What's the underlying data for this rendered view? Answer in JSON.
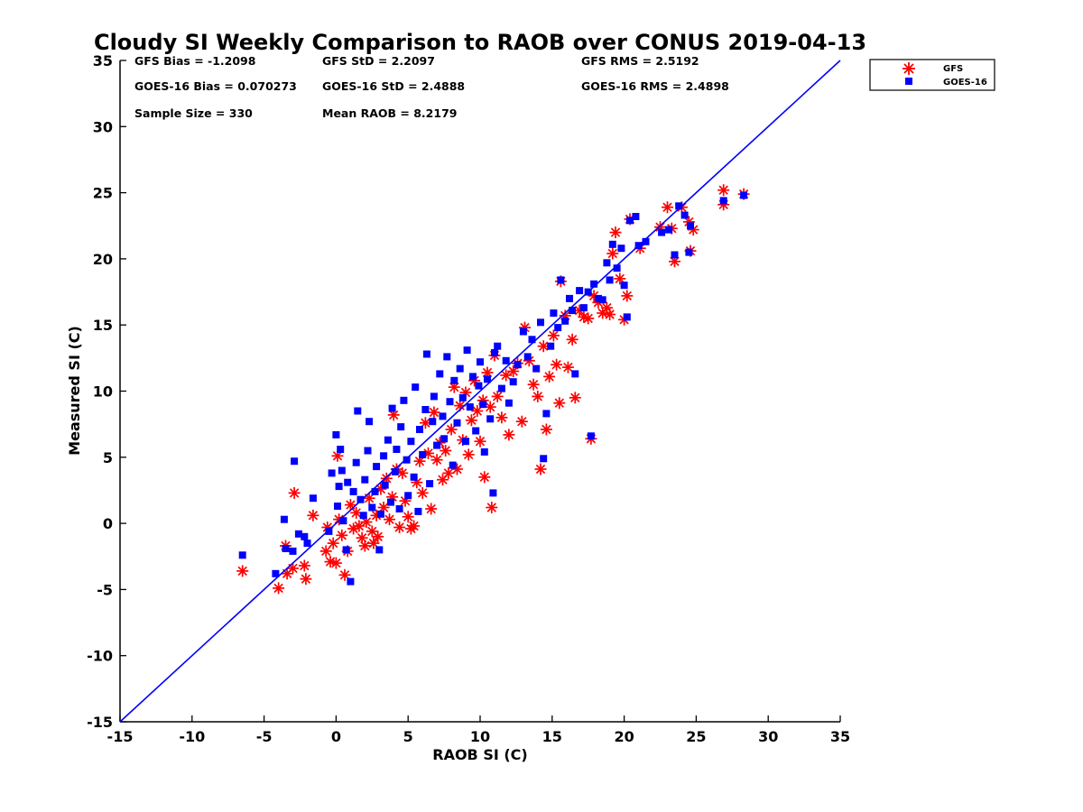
{
  "chart_data": {
    "type": "scatter",
    "title": "Cloudy SI Weekly Comparison to RAOB over CONUS 2019-04-13",
    "xlabel": "RAOB SI (C)",
    "ylabel": "Measured SI (C)",
    "xlim": [
      -15,
      35
    ],
    "ylim": [
      -15,
      35
    ],
    "xticks": [
      "-15",
      "-10",
      "-5",
      "0",
      "5",
      "10",
      "15",
      "20",
      "25",
      "30",
      "35"
    ],
    "yticks": [
      "-15",
      "-10",
      "-5",
      "0",
      "5",
      "10",
      "15",
      "20",
      "25",
      "30",
      "35"
    ],
    "grid": false,
    "legend_position": "outside-top-right",
    "reference_line": {
      "from": [
        -15,
        -15
      ],
      "to": [
        35,
        35
      ],
      "color": "#0000ff"
    },
    "stats": [
      {
        "label": "GFS Bias = -1.2098"
      },
      {
        "label": "GFS StD = 2.2097"
      },
      {
        "label": "GFS RMS = 2.5192"
      },
      {
        "label": "GOES-16 Bias = 0.070273"
      },
      {
        "label": "GOES-16 StD = 2.4888"
      },
      {
        "label": "GOES-16 RMS = 2.4898"
      },
      {
        "label": "Sample Size = 330"
      },
      {
        "label": "Mean RAOB = 8.2179"
      }
    ],
    "series": [
      {
        "name": "GFS",
        "marker": "asterisk",
        "color": "#ff0000",
        "points": [
          [
            -6.5,
            -3.6
          ],
          [
            -4,
            -4.9
          ],
          [
            -3.5,
            -1.7
          ],
          [
            -3.4,
            -3.8
          ],
          [
            -3,
            -3.4
          ],
          [
            -2.9,
            2.3
          ],
          [
            -2.2,
            -3.2
          ],
          [
            -2.1,
            -4.2
          ],
          [
            -1.6,
            0.6
          ],
          [
            -0.7,
            -2.1
          ],
          [
            -0.6,
            -0.3
          ],
          [
            -0.4,
            -2.9
          ],
          [
            -0.2,
            -1.5
          ],
          [
            0,
            -3
          ],
          [
            0.1,
            5.1
          ],
          [
            0.2,
            0.3
          ],
          [
            0.4,
            -0.9
          ],
          [
            0.6,
            -3.9
          ],
          [
            0.8,
            -2.1
          ],
          [
            1,
            1.4
          ],
          [
            1.2,
            -0.4
          ],
          [
            1.4,
            0.8
          ],
          [
            1.6,
            -0.2
          ],
          [
            1.8,
            -1.1
          ],
          [
            2,
            -1.7
          ],
          [
            2.1,
            0.1
          ],
          [
            2.3,
            1.9
          ],
          [
            2.5,
            -0.6
          ],
          [
            2.6,
            -1.5
          ],
          [
            2.8,
            0.6
          ],
          [
            2.9,
            -1.0
          ],
          [
            3.1,
            2.6
          ],
          [
            3.3,
            1.2
          ],
          [
            3.5,
            3.4
          ],
          [
            3.7,
            0.3
          ],
          [
            3.9,
            2.0
          ],
          [
            4,
            8.2
          ],
          [
            4.2,
            4.1
          ],
          [
            4.4,
            -0.3
          ],
          [
            4.6,
            3.8
          ],
          [
            4.8,
            1.7
          ],
          [
            5,
            0.5
          ],
          [
            5.2,
            -0.4
          ],
          [
            5.4,
            -0.2
          ],
          [
            5.6,
            3.1
          ],
          [
            5.8,
            4.7
          ],
          [
            6,
            2.3
          ],
          [
            6.2,
            7.6
          ],
          [
            6.4,
            5.3
          ],
          [
            6.6,
            1.1
          ],
          [
            6.8,
            8.4
          ],
          [
            7,
            4.8
          ],
          [
            7.2,
            6.1
          ],
          [
            7.4,
            3.3
          ],
          [
            7.6,
            5.5
          ],
          [
            7.8,
            3.8
          ],
          [
            8,
            7.1
          ],
          [
            8.2,
            10.3
          ],
          [
            8.4,
            4.1
          ],
          [
            8.6,
            8.9
          ],
          [
            8.8,
            6.3
          ],
          [
            9,
            9.9
          ],
          [
            9.2,
            5.2
          ],
          [
            9.4,
            7.8
          ],
          [
            9.6,
            10.8
          ],
          [
            9.8,
            8.5
          ],
          [
            10,
            6.2
          ],
          [
            10.2,
            9.3
          ],
          [
            10.3,
            3.5
          ],
          [
            10.5,
            11.4
          ],
          [
            10.7,
            8.8
          ],
          [
            10.8,
            1.2
          ],
          [
            11,
            12.7
          ],
          [
            11.2,
            9.6
          ],
          [
            11.5,
            8.0
          ],
          [
            11.8,
            11.2
          ],
          [
            12,
            6.7
          ],
          [
            12.3,
            11.5
          ],
          [
            12.6,
            12.1
          ],
          [
            12.9,
            7.7
          ],
          [
            13.1,
            14.8
          ],
          [
            13.4,
            12.3
          ],
          [
            13.7,
            10.5
          ],
          [
            14,
            9.6
          ],
          [
            14.2,
            4.1
          ],
          [
            14.4,
            13.4
          ],
          [
            14.6,
            7.1
          ],
          [
            14.8,
            11.1
          ],
          [
            15.1,
            14.2
          ],
          [
            15.3,
            12.0
          ],
          [
            15.5,
            9.1
          ],
          [
            15.6,
            18.3
          ],
          [
            15.9,
            15.7
          ],
          [
            16.1,
            11.8
          ],
          [
            16.4,
            13.9
          ],
          [
            16.6,
            9.5
          ],
          [
            16.9,
            16.1
          ],
          [
            17.2,
            15.6
          ],
          [
            17.5,
            15.5
          ],
          [
            17.7,
            6.4
          ],
          [
            17.9,
            17.2
          ],
          [
            18.2,
            16.7
          ],
          [
            18.5,
            15.9
          ],
          [
            18.8,
            16.3
          ],
          [
            19,
            15.8
          ],
          [
            19.2,
            20.4
          ],
          [
            19.4,
            22.0
          ],
          [
            19.7,
            18.5
          ],
          [
            20,
            15.4
          ],
          [
            20.2,
            17.2
          ],
          [
            20.4,
            23.0
          ],
          [
            21.1,
            20.8
          ],
          [
            22.5,
            22.4
          ],
          [
            23,
            23.9
          ],
          [
            23.3,
            22.3
          ],
          [
            23.5,
            19.8
          ],
          [
            24,
            23.9
          ],
          [
            24.5,
            22.8
          ],
          [
            24.6,
            20.6
          ],
          [
            24.8,
            22.2
          ],
          [
            26.9,
            25.2
          ],
          [
            26.9,
            24.1
          ],
          [
            28.3,
            24.9
          ]
        ]
      },
      {
        "name": "GOES-16",
        "marker": "square",
        "color": "#0000ff",
        "points": [
          [
            -6.5,
            -2.4
          ],
          [
            -4.2,
            -3.8
          ],
          [
            -3.6,
            0.3
          ],
          [
            -3.5,
            -1.9
          ],
          [
            -3,
            -2.1
          ],
          [
            -2.9,
            4.7
          ],
          [
            -2.6,
            -0.8
          ],
          [
            -2.2,
            -1.0
          ],
          [
            -2,
            -1.5
          ],
          [
            -1.6,
            1.9
          ],
          [
            -0.5,
            -0.6
          ],
          [
            -0.3,
            3.8
          ],
          [
            0,
            6.7
          ],
          [
            0.1,
            1.3
          ],
          [
            0.2,
            2.8
          ],
          [
            0.3,
            5.6
          ],
          [
            0.4,
            4.0
          ],
          [
            0.5,
            0.2
          ],
          [
            0.7,
            -2.0
          ],
          [
            0.8,
            3.1
          ],
          [
            1,
            -4.4
          ],
          [
            1.2,
            2.4
          ],
          [
            1.4,
            4.6
          ],
          [
            1.5,
            8.5
          ],
          [
            1.7,
            1.8
          ],
          [
            1.9,
            0.6
          ],
          [
            2,
            3.3
          ],
          [
            2.2,
            5.5
          ],
          [
            2.3,
            7.7
          ],
          [
            2.5,
            1.2
          ],
          [
            2.7,
            2.4
          ],
          [
            2.8,
            4.3
          ],
          [
            3,
            -2.0
          ],
          [
            3.1,
            0.7
          ],
          [
            3.3,
            5.1
          ],
          [
            3.4,
            2.9
          ],
          [
            3.6,
            6.3
          ],
          [
            3.8,
            1.6
          ],
          [
            3.9,
            8.7
          ],
          [
            4.1,
            3.9
          ],
          [
            4.2,
            5.6
          ],
          [
            4.4,
            1.1
          ],
          [
            4.5,
            7.3
          ],
          [
            4.7,
            9.3
          ],
          [
            4.9,
            4.8
          ],
          [
            5,
            2.1
          ],
          [
            5.2,
            6.2
          ],
          [
            5.4,
            3.5
          ],
          [
            5.5,
            10.3
          ],
          [
            5.7,
            0.9
          ],
          [
            5.8,
            7.1
          ],
          [
            6,
            5.2
          ],
          [
            6.2,
            8.6
          ],
          [
            6.3,
            12.8
          ],
          [
            6.5,
            3.0
          ],
          [
            6.7,
            7.7
          ],
          [
            6.8,
            9.6
          ],
          [
            7,
            5.9
          ],
          [
            7.2,
            11.3
          ],
          [
            7.4,
            8.1
          ],
          [
            7.5,
            6.4
          ],
          [
            7.7,
            12.6
          ],
          [
            7.9,
            9.2
          ],
          [
            8.1,
            4.4
          ],
          [
            8.2,
            10.8
          ],
          [
            8.4,
            7.6
          ],
          [
            8.6,
            11.7
          ],
          [
            8.8,
            9.5
          ],
          [
            9,
            6.2
          ],
          [
            9.1,
            13.1
          ],
          [
            9.3,
            8.8
          ],
          [
            9.5,
            11.1
          ],
          [
            9.7,
            7.0
          ],
          [
            9.9,
            10.4
          ],
          [
            10,
            12.2
          ],
          [
            10.2,
            9.0
          ],
          [
            10.3,
            5.4
          ],
          [
            10.5,
            10.9
          ],
          [
            10.7,
            7.9
          ],
          [
            10.9,
            2.3
          ],
          [
            11,
            12.9
          ],
          [
            11.2,
            13.4
          ],
          [
            11.5,
            10.2
          ],
          [
            11.8,
            12.3
          ],
          [
            12,
            9.1
          ],
          [
            12.3,
            10.7
          ],
          [
            12.6,
            12.0
          ],
          [
            13,
            14.5
          ],
          [
            13.3,
            12.6
          ],
          [
            13.6,
            13.9
          ],
          [
            13.9,
            11.7
          ],
          [
            14.2,
            15.2
          ],
          [
            14.4,
            4.9
          ],
          [
            14.6,
            8.3
          ],
          [
            14.9,
            13.4
          ],
          [
            15.1,
            15.9
          ],
          [
            15.4,
            14.8
          ],
          [
            15.6,
            18.4
          ],
          [
            15.9,
            15.3
          ],
          [
            16.2,
            17.0
          ],
          [
            16.4,
            16.1
          ],
          [
            16.6,
            11.3
          ],
          [
            16.9,
            17.6
          ],
          [
            17.2,
            16.3
          ],
          [
            17.5,
            17.5
          ],
          [
            17.7,
            6.6
          ],
          [
            17.9,
            18.1
          ],
          [
            18.2,
            17.0
          ],
          [
            18.5,
            16.9
          ],
          [
            18.8,
            19.7
          ],
          [
            19,
            18.4
          ],
          [
            19.2,
            21.1
          ],
          [
            19.5,
            19.3
          ],
          [
            19.8,
            20.8
          ],
          [
            20,
            18.0
          ],
          [
            20.2,
            15.6
          ],
          [
            20.4,
            22.9
          ],
          [
            20.8,
            23.2
          ],
          [
            21,
            21.0
          ],
          [
            21.5,
            21.3
          ],
          [
            22.6,
            22.0
          ],
          [
            23.1,
            22.2
          ],
          [
            23.5,
            20.3
          ],
          [
            23.8,
            24.0
          ],
          [
            24.2,
            23.3
          ],
          [
            24.5,
            20.5
          ],
          [
            24.6,
            22.5
          ],
          [
            26.9,
            24.4
          ],
          [
            28.3,
            24.8
          ]
        ]
      }
    ]
  }
}
